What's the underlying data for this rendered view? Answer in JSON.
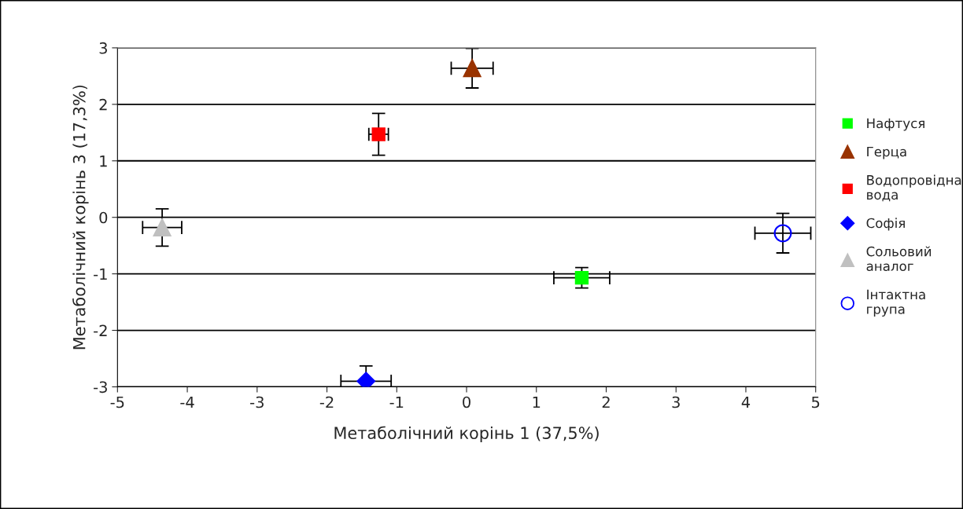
{
  "chart_data": {
    "type": "scatter",
    "xlabel": "Метаболічний корінь 1 (37,5%)",
    "ylabel": "Метаболічний корінь 3 (17,3%)",
    "xlim": [
      -5,
      5
    ],
    "xticks": [
      -5,
      -4,
      -3,
      -2,
      -1,
      0,
      1,
      2,
      3,
      4,
      5
    ],
    "ylim": [
      -3,
      3
    ],
    "yticks": [
      -3,
      -2,
      -1,
      0,
      1,
      2,
      3
    ],
    "grid": "y",
    "legend": "right",
    "series": [
      {
        "name": "Нафтуся",
        "color": "#00ff00",
        "marker": "square",
        "x": [
          1.65
        ],
        "values": [
          -1.07
        ],
        "xerrors": [
          0.4
        ],
        "errors": [
          0.18
        ]
      },
      {
        "name": "Герца",
        "color": "#993300",
        "marker": "triangle",
        "x": [
          0.08
        ],
        "values": [
          2.64
        ],
        "xerrors": [
          0.3
        ],
        "errors": [
          0.35
        ]
      },
      {
        "name": "Водопровідна вода",
        "color": "#ff0000",
        "marker": "square",
        "x": [
          -1.26
        ],
        "values": [
          1.47
        ],
        "xerrors": [
          0.14
        ],
        "errors": [
          0.37
        ]
      },
      {
        "name": "Софія",
        "color": "#0000ff",
        "marker": "diamond",
        "x": [
          -1.44
        ],
        "values": [
          -2.9
        ],
        "xerrors": [
          0.36
        ],
        "errors": [
          0.27
        ]
      },
      {
        "name": "Сольовий аналог",
        "color": "#c0c0c0",
        "marker": "triangle",
        "x": [
          -4.36
        ],
        "values": [
          -0.18
        ],
        "xerrors": [
          0.28
        ],
        "errors": [
          0.33
        ]
      },
      {
        "name": "Інтактна група",
        "color": "#0000ff",
        "marker": "circle",
        "x": [
          4.53
        ],
        "values": [
          -0.28
        ],
        "xerrors": [
          0.4
        ],
        "errors": [
          0.35
        ]
      }
    ]
  }
}
